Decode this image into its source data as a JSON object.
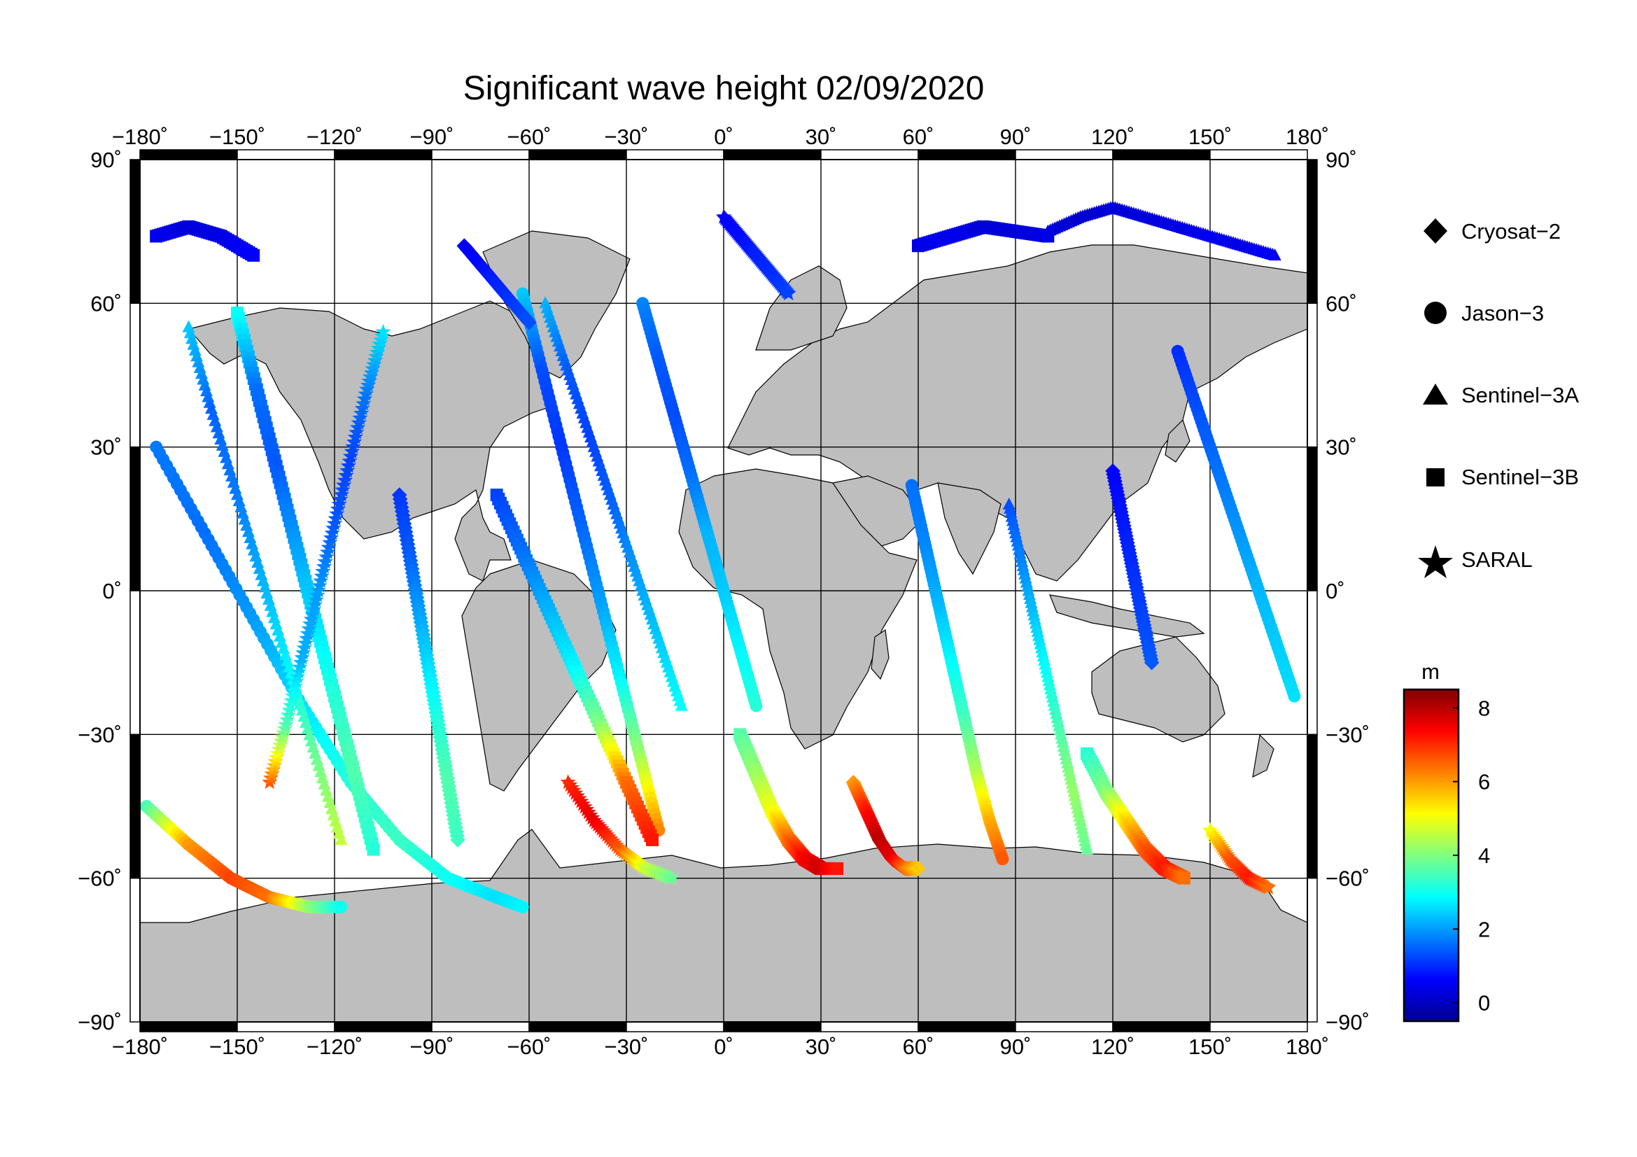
{
  "title": "Significant wave height 02/09/2020",
  "lon_ticks": [
    {
      "value": -180,
      "label": "−180˚"
    },
    {
      "value": -150,
      "label": "−150˚"
    },
    {
      "value": -120,
      "label": "−120˚"
    },
    {
      "value": -90,
      "label": "−90˚"
    },
    {
      "value": -60,
      "label": "−60˚"
    },
    {
      "value": -30,
      "label": "−30˚"
    },
    {
      "value": 0,
      "label": "0˚"
    },
    {
      "value": 30,
      "label": "30˚"
    },
    {
      "value": 60,
      "label": "60˚"
    },
    {
      "value": 90,
      "label": "90˚"
    },
    {
      "value": 120,
      "label": "120˚"
    },
    {
      "value": 150,
      "label": "150˚"
    },
    {
      "value": 180,
      "label": "180˚"
    }
  ],
  "lat_ticks": [
    {
      "value": 90,
      "label": "90˚"
    },
    {
      "value": 60,
      "label": "60˚"
    },
    {
      "value": 30,
      "label": "30˚"
    },
    {
      "value": 0,
      "label": "0˚"
    },
    {
      "value": -30,
      "label": "−30˚"
    },
    {
      "value": -60,
      "label": "−60˚"
    },
    {
      "value": -90,
      "label": "−90˚"
    }
  ],
  "legend": {
    "items": [
      {
        "label": "Cryosat−2",
        "marker": "diamond"
      },
      {
        "label": "Jason−3",
        "marker": "circle"
      },
      {
        "label": "Sentinel−3A",
        "marker": "triangle"
      },
      {
        "label": "Sentinel−3B",
        "marker": "square"
      },
      {
        "label": "SARAL",
        "marker": "star"
      }
    ]
  },
  "colorbar": {
    "unit": "m",
    "min": -0.5,
    "max": 8.5,
    "ticks": [
      {
        "value": 0,
        "label": "0"
      },
      {
        "value": 2,
        "label": "2"
      },
      {
        "value": 4,
        "label": "4"
      },
      {
        "value": 6,
        "label": "6"
      },
      {
        "value": 8,
        "label": "8"
      }
    ],
    "colormap": "jet"
  },
  "colors": {
    "land": "#bebebe",
    "ocean": "#ffffff",
    "frame": "#000000",
    "grid": "#000000"
  },
  "map": {
    "projection": "equirectangular",
    "lon_range": [
      -180,
      180
    ],
    "lat_range": [
      -90,
      90
    ],
    "grid_step": 30,
    "tracks": [
      {
        "sat": "jason3",
        "marker": "circle",
        "lon": [
          -175,
          -160,
          -145,
          -130,
          -115,
          -100,
          -85,
          -70,
          -62
        ],
        "lat": [
          30,
          12,
          -6,
          -24,
          -40,
          -52,
          -60,
          -64,
          -66
        ],
        "swh": [
          1.7,
          1.6,
          2.0,
          2.6,
          3.2,
          3.4,
          3.0,
          2.6,
          2.8
        ]
      },
      {
        "sat": "jason3",
        "marker": "circle",
        "lon": [
          -178,
          -165,
          -152,
          -140,
          -128,
          -118
        ],
        "lat": [
          -45,
          -53,
          -60,
          -64,
          -66,
          -66
        ],
        "swh": [
          3.5,
          6.0,
          6.8,
          6.4,
          4.2,
          3.0
        ]
      },
      {
        "sat": "sentinel3a",
        "marker": "triangle",
        "lon": [
          -165,
          -158,
          -150,
          -142,
          -134,
          -126,
          -118
        ],
        "lat": [
          55,
          38,
          20,
          2,
          -16,
          -34,
          -52
        ],
        "swh": [
          2.4,
          1.5,
          1.7,
          2.2,
          2.8,
          3.8,
          4.6
        ]
      },
      {
        "sat": "sentinel3b",
        "marker": "square",
        "lon": [
          -150,
          -144,
          -138,
          -132,
          -126,
          -120,
          -114,
          -108
        ],
        "lat": [
          58,
          42,
          26,
          10,
          -6,
          -22,
          -38,
          -54
        ],
        "swh": [
          3.0,
          1.6,
          1.4,
          2.0,
          2.6,
          3.2,
          3.6,
          3.2
        ]
      },
      {
        "sat": "saral",
        "marker": "star",
        "lon": [
          -140,
          -135,
          -130,
          -125,
          -120,
          -115,
          -110,
          -105
        ],
        "lat": [
          -40,
          -28,
          -14,
          0,
          14,
          28,
          42,
          54
        ],
        "swh": [
          6.6,
          3.6,
          2.2,
          2.0,
          1.4,
          1.2,
          1.7,
          2.6
        ]
      },
      {
        "sat": "cryosat2",
        "marker": "diamond",
        "lon": [
          -100,
          -97,
          -94,
          -91,
          -88,
          -85,
          -82
        ],
        "lat": [
          20,
          8,
          -4,
          -16,
          -28,
          -40,
          -52
        ],
        "swh": [
          1.1,
          1.4,
          2.0,
          2.6,
          3.2,
          3.6,
          3.4
        ]
      },
      {
        "sat": "jason3",
        "marker": "circle",
        "lon": [
          -62,
          -56,
          -50,
          -44,
          -38,
          -32,
          -26,
          -20
        ],
        "lat": [
          62,
          46,
          30,
          14,
          -2,
          -18,
          -34,
          -50
        ],
        "swh": [
          2.4,
          1.3,
          1.1,
          1.5,
          2.0,
          2.8,
          4.2,
          6.2
        ]
      },
      {
        "sat": "sentinel3b",
        "marker": "square",
        "lon": [
          -70,
          -62,
          -54,
          -46,
          -38,
          -30,
          -22
        ],
        "lat": [
          20,
          8,
          -4,
          -16,
          -28,
          -40,
          -52
        ],
        "swh": [
          1.2,
          1.6,
          2.2,
          2.8,
          4.0,
          6.4,
          7.2
        ]
      },
      {
        "sat": "sentinel3a",
        "marker": "triangle",
        "lon": [
          -55,
          -48,
          -41,
          -34,
          -27,
          -20,
          -13
        ],
        "lat": [
          60,
          46,
          32,
          18,
          4,
          -10,
          -24
        ],
        "swh": [
          2.2,
          1.4,
          1.2,
          1.5,
          2.0,
          2.4,
          2.9
        ]
      },
      {
        "sat": "saral",
        "marker": "star",
        "lon": [
          -48,
          -40,
          -32,
          -24,
          -16
        ],
        "lat": [
          -40,
          -48,
          -54,
          -58,
          -60
        ],
        "swh": [
          7.0,
          7.6,
          6.6,
          4.6,
          3.8
        ]
      },
      {
        "sat": "jason3",
        "marker": "circle",
        "lon": [
          -25,
          -20,
          -15,
          -10,
          -5,
          0,
          5,
          10
        ],
        "lat": [
          60,
          48,
          36,
          24,
          12,
          0,
          -12,
          -24
        ],
        "swh": [
          1.8,
          1.4,
          1.3,
          1.6,
          2.2,
          2.4,
          2.8,
          3.2
        ]
      },
      {
        "sat": "sentinel3b",
        "marker": "square",
        "lon": [
          5,
          10,
          15,
          20,
          25,
          30,
          35
        ],
        "lat": [
          -30,
          -38,
          -46,
          -52,
          -56,
          -58,
          -58
        ],
        "swh": [
          3.6,
          4.2,
          5.0,
          6.4,
          7.4,
          7.8,
          7.2
        ]
      },
      {
        "sat": "cryosat2",
        "marker": "diamond",
        "lon": [
          40,
          44,
          48,
          52,
          56,
          60
        ],
        "lat": [
          -40,
          -46,
          -52,
          -56,
          -58,
          -58
        ],
        "swh": [
          6.0,
          7.2,
          8.0,
          7.6,
          6.4,
          5.6
        ]
      },
      {
        "sat": "jason3",
        "marker": "circle",
        "lon": [
          58,
          62,
          66,
          70,
          74,
          78,
          82,
          86
        ],
        "lat": [
          22,
          10,
          -2,
          -14,
          -26,
          -38,
          -48,
          -56
        ],
        "swh": [
          1.6,
          1.8,
          2.2,
          2.8,
          3.4,
          4.4,
          5.8,
          6.6
        ]
      },
      {
        "sat": "sentinel3a",
        "marker": "triangle",
        "lon": [
          88,
          92,
          96,
          100,
          104,
          108,
          112
        ],
        "lat": [
          18,
          6,
          -6,
          -18,
          -30,
          -42,
          -54
        ],
        "swh": [
          1.3,
          1.8,
          2.4,
          3.0,
          3.6,
          4.2,
          3.8
        ]
      },
      {
        "sat": "sentinel3b",
        "marker": "square",
        "lon": [
          112,
          118,
          124,
          130,
          136,
          142
        ],
        "lat": [
          -34,
          -42,
          -48,
          -54,
          -58,
          -60
        ],
        "swh": [
          3.2,
          4.0,
          5.4,
          6.6,
          7.2,
          6.4
        ]
      },
      {
        "sat": "cryosat2",
        "marker": "diamond",
        "lon": [
          120,
          123,
          126,
          129,
          132
        ],
        "lat": [
          25,
          15,
          5,
          -5,
          -15
        ],
        "swh": [
          0.6,
          0.8,
          1.0,
          1.2,
          1.4
        ]
      },
      {
        "sat": "jason3",
        "marker": "circle",
        "lon": [
          140,
          146,
          152,
          158,
          164,
          170,
          176
        ],
        "lat": [
          50,
          38,
          26,
          14,
          2,
          -10,
          -22
        ],
        "swh": [
          1.0,
          1.3,
          1.6,
          1.9,
          2.2,
          2.4,
          2.6
        ]
      },
      {
        "sat": "saral",
        "marker": "star",
        "lon": [
          150,
          156,
          162,
          168
        ],
        "lat": [
          -50,
          -56,
          -60,
          -62
        ],
        "swh": [
          5.0,
          6.6,
          7.2,
          6.4
        ]
      },
      {
        "sat": "sentinel3a",
        "marker": "triangle",
        "lon": [
          100,
          110,
          120,
          130,
          140,
          150,
          160,
          170
        ],
        "lat": [
          75,
          78,
          80,
          78,
          76,
          74,
          72,
          70
        ],
        "swh": [
          0.3,
          0.2,
          0.3,
          0.3,
          0.4,
          0.5,
          0.4,
          0.6
        ]
      },
      {
        "sat": "sentinel3b",
        "marker": "square",
        "lon": [
          60,
          70,
          80,
          90,
          100
        ],
        "lat": [
          72,
          74,
          76,
          75,
          74
        ],
        "swh": [
          0.4,
          0.5,
          0.3,
          0.3,
          0.4
        ]
      },
      {
        "sat": "saral",
        "marker": "star",
        "lon": [
          0,
          5,
          10,
          15,
          20
        ],
        "lat": [
          78,
          74,
          70,
          66,
          62
        ],
        "swh": [
          0.6,
          0.7,
          0.9,
          1.0,
          1.2
        ]
      },
      {
        "sat": "sentinel3b",
        "marker": "square",
        "lon": [
          -175,
          -165,
          -155,
          -145
        ],
        "lat": [
          74,
          76,
          74,
          70
        ],
        "swh": [
          0.5,
          0.3,
          0.4,
          0.6
        ]
      },
      {
        "sat": "cryosat2",
        "marker": "diamond",
        "lon": [
          -80,
          -75,
          -70,
          -65,
          -60
        ],
        "lat": [
          72,
          68,
          64,
          60,
          56
        ],
        "swh": [
          0.5,
          0.7,
          0.9,
          1.1,
          1.3
        ]
      }
    ]
  }
}
